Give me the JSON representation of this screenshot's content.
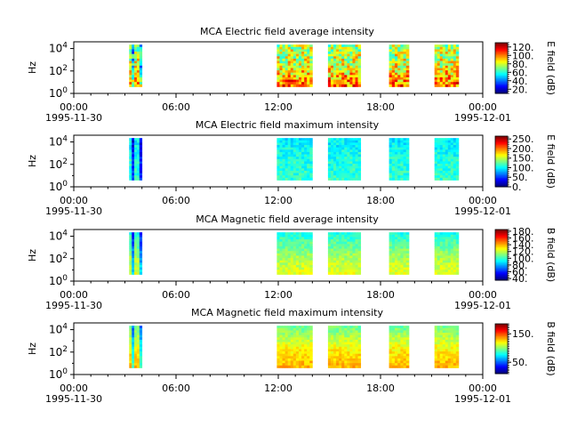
{
  "figure": {
    "background": "#ffffff",
    "x_ticks": [
      {
        "time": "00:00",
        "date": "1995-11-30"
      },
      {
        "time": "06:00",
        "date": ""
      },
      {
        "time": "12:00",
        "date": ""
      },
      {
        "time": "18:00",
        "date": ""
      },
      {
        "time": "00:00",
        "date": "1995-12-01"
      }
    ],
    "y_axis_label": "Hz",
    "y_tick_labels": [
      "10^0",
      "10^2",
      "10^4"
    ]
  },
  "chart_data": [
    {
      "type": "heatmap",
      "title": "MCA  Electric field average intensity",
      "xlabel": "",
      "ylabel": "Hz",
      "x_range": [
        "1995-11-30 00:00",
        "1995-12-01 00:00"
      ],
      "y_range_log10": [
        0,
        4.6
      ],
      "y_scale": "log",
      "colorbar": {
        "label": "E field (dB)",
        "range": [
          10,
          130
        ],
        "tick_values": [
          20,
          40,
          60,
          80,
          100,
          120
        ],
        "tick_labels": [
          "20.",
          "40.",
          "60.",
          "80.",
          "100.",
          "120."
        ],
        "colormap": "jet"
      },
      "data_intervals": [
        {
          "start": "03:15",
          "end": "04:00"
        },
        {
          "start": "11:55",
          "end": "14:00"
        },
        {
          "start": "14:55",
          "end": "16:50"
        },
        {
          "start": "18:30",
          "end": "19:40"
        },
        {
          "start": "21:10",
          "end": "22:35"
        }
      ],
      "intensity_profile": {
        "low_freq": 0.78,
        "mid_freq": 0.6,
        "high_freq": 0.55,
        "variability": 0.18
      }
    },
    {
      "type": "heatmap",
      "title": "MCA  Electric field maximum intensity",
      "xlabel": "",
      "ylabel": "Hz",
      "x_range": [
        "1995-11-30 00:00",
        "1995-12-01 00:00"
      ],
      "y_range_log10": [
        0,
        4.6
      ],
      "y_scale": "log",
      "colorbar": {
        "label": "E field (dB)",
        "range": [
          0,
          265
        ],
        "tick_values": [
          0,
          50,
          100,
          150,
          200,
          250
        ],
        "tick_labels": [
          "0.",
          "50.",
          "100.",
          "150.",
          "200.",
          "250."
        ],
        "colormap": "jet"
      },
      "data_intervals": [
        {
          "start": "03:15",
          "end": "04:00"
        },
        {
          "start": "11:55",
          "end": "14:00"
        },
        {
          "start": "14:55",
          "end": "16:50"
        },
        {
          "start": "18:30",
          "end": "19:40"
        },
        {
          "start": "21:10",
          "end": "22:35"
        }
      ],
      "intensity_profile": {
        "low_freq": 0.42,
        "mid_freq": 0.4,
        "high_freq": 0.36,
        "variability": 0.06
      }
    },
    {
      "type": "heatmap",
      "title": "MCA  Magnetic field average intensity",
      "xlabel": "",
      "ylabel": "Hz",
      "x_range": [
        "1995-11-30 00:00",
        "1995-12-01 00:00"
      ],
      "y_range_log10": [
        0,
        4.6
      ],
      "y_scale": "log",
      "colorbar": {
        "label": "B field (dB)",
        "range": [
          35,
          185
        ],
        "tick_values": [
          40,
          60,
          80,
          100,
          120,
          140,
          160,
          180
        ],
        "tick_labels": [
          "40.",
          "60.",
          "80.",
          "100.",
          "120.",
          "140.",
          "160.",
          "180."
        ],
        "colormap": "jet"
      },
      "data_intervals": [
        {
          "start": "03:15",
          "end": "04:00"
        },
        {
          "start": "11:55",
          "end": "14:00"
        },
        {
          "start": "14:55",
          "end": "16:50"
        },
        {
          "start": "18:30",
          "end": "19:40"
        },
        {
          "start": "21:10",
          "end": "22:35"
        }
      ],
      "intensity_profile": {
        "low_freq": 0.6,
        "mid_freq": 0.52,
        "high_freq": 0.4,
        "variability": 0.05
      }
    },
    {
      "type": "heatmap",
      "title": "MCA  Magnetic field maximum intensity",
      "xlabel": "",
      "ylabel": "Hz",
      "x_range": [
        "1995-11-30 00:00",
        "1995-12-01 00:00"
      ],
      "y_range_log10": [
        0,
        4.6
      ],
      "y_scale": "log",
      "colorbar": {
        "label": "B field (dB)",
        "range": [
          10,
          185
        ],
        "tick_values": [
          50,
          150
        ],
        "tick_labels": [
          "50.",
          "150."
        ],
        "colormap": "jet"
      },
      "data_intervals": [
        {
          "start": "03:15",
          "end": "04:00"
        },
        {
          "start": "11:55",
          "end": "14:00"
        },
        {
          "start": "14:55",
          "end": "16:50"
        },
        {
          "start": "18:30",
          "end": "19:40"
        },
        {
          "start": "21:10",
          "end": "22:35"
        }
      ],
      "intensity_profile": {
        "low_freq": 0.7,
        "mid_freq": 0.62,
        "high_freq": 0.48,
        "variability": 0.05
      }
    }
  ]
}
